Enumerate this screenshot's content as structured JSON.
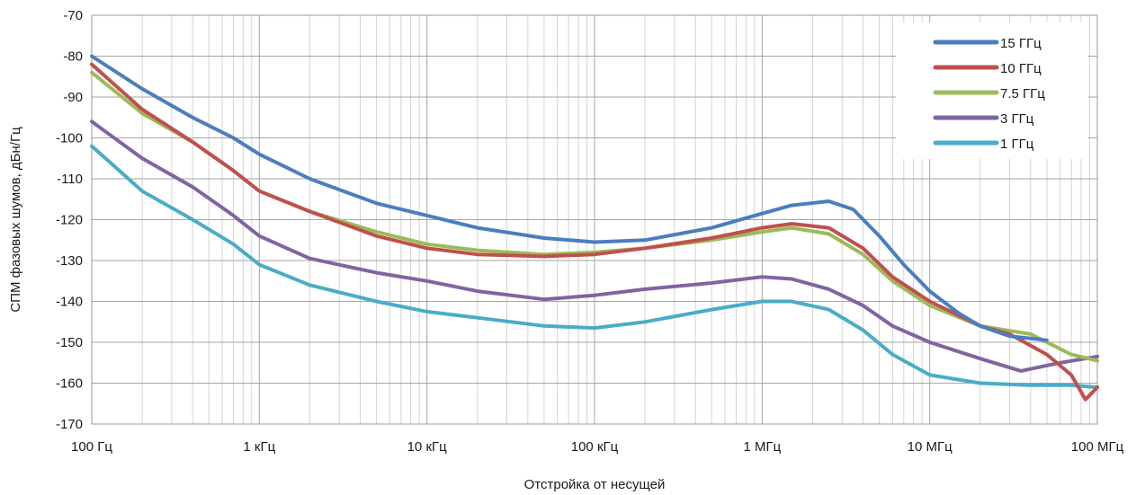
{
  "chart_data": {
    "type": "line",
    "title": "",
    "xlabel": "Отстройка от несущей",
    "ylabel": "СПМ фазовых шумов, дБн/Гц",
    "x_scale": "log",
    "xlim": [
      100,
      100000000
    ],
    "ylim": [
      -170,
      -70
    ],
    "x_ticks": [
      {
        "value": 100,
        "label": "100 Гц"
      },
      {
        "value": 1000,
        "label": "1 кГц"
      },
      {
        "value": 10000,
        "label": "10 кГц"
      },
      {
        "value": 100000,
        "label": "100 кГц"
      },
      {
        "value": 1000000,
        "label": "1 МГц"
      },
      {
        "value": 10000000,
        "label": "10 МГц"
      },
      {
        "value": 100000000,
        "label": "100 МГц"
      }
    ],
    "y_ticks": [
      -70,
      -80,
      -90,
      -100,
      -110,
      -120,
      -130,
      -140,
      -150,
      -160,
      -170
    ],
    "grid": true,
    "legend_position": "top-right",
    "series": [
      {
        "name": "15 ГГц",
        "color": "#4a7ebf",
        "x": [
          100,
          200,
          400,
          700,
          1000,
          2000,
          5000,
          10000,
          20000,
          50000,
          100000,
          200000,
          500000,
          1000000,
          1500000,
          2500000,
          3500000,
          5000000,
          7000000,
          10000000,
          15000000,
          20000000,
          30000000,
          50000000
        ],
        "y": [
          -80,
          -88,
          -95,
          -100,
          -104,
          -110,
          -116,
          -119,
          -122,
          -124.5,
          -125.5,
          -125,
          -122,
          -118.5,
          -116.5,
          -115.5,
          -117.5,
          -124,
          -131,
          -137.5,
          -143,
          -146,
          -148.5,
          -149.5
        ]
      },
      {
        "name": "10 ГГц",
        "color": "#c0504d",
        "x": [
          100,
          200,
          400,
          700,
          1000,
          2000,
          5000,
          10000,
          20000,
          50000,
          100000,
          200000,
          500000,
          1000000,
          1500000,
          2500000,
          4000000,
          6000000,
          10000000,
          20000000,
          30000000,
          50000000,
          70000000,
          85000000,
          100000000
        ],
        "y": [
          -82,
          -93,
          -101,
          -108,
          -113,
          -118,
          -124,
          -127,
          -128.5,
          -129,
          -128.5,
          -127,
          -124.5,
          -122,
          -121,
          -122,
          -127,
          -134,
          -140,
          -146,
          -148,
          -153,
          -158,
          -164,
          -161
        ]
      },
      {
        "name": "7.5 ГГц",
        "color": "#9bbb59",
        "x": [
          100,
          200,
          400,
          700,
          1000,
          2000,
          5000,
          10000,
          20000,
          50000,
          100000,
          200000,
          500000,
          1000000,
          1500000,
          2500000,
          4000000,
          6000000,
          10000000,
          20000000,
          40000000,
          70000000,
          100000000
        ],
        "y": [
          -84,
          -94,
          -101,
          -108,
          -113,
          -118,
          -123,
          -126,
          -127.5,
          -128.5,
          -128,
          -127,
          -125,
          -123,
          -122,
          -123.5,
          -128.5,
          -135,
          -141,
          -146,
          -148,
          -153,
          -154.5
        ]
      },
      {
        "name": "3 ГГц",
        "color": "#8064a2",
        "x": [
          100,
          200,
          400,
          700,
          1000,
          2000,
          5000,
          10000,
          20000,
          50000,
          100000,
          200000,
          500000,
          1000000,
          1500000,
          2500000,
          4000000,
          6000000,
          10000000,
          20000000,
          35000000,
          60000000,
          100000000
        ],
        "y": [
          -96,
          -105,
          -112,
          -119,
          -124,
          -129.5,
          -133,
          -135,
          -137.5,
          -139.5,
          -138.5,
          -137,
          -135.5,
          -134,
          -134.5,
          -137,
          -141,
          -146,
          -150,
          -154,
          -157,
          -155,
          -153.5
        ]
      },
      {
        "name": "1 ГГц",
        "color": "#4bacc6",
        "x": [
          100,
          200,
          400,
          700,
          1000,
          2000,
          5000,
          10000,
          20000,
          50000,
          100000,
          200000,
          500000,
          1000000,
          1500000,
          2500000,
          4000000,
          6000000,
          10000000,
          20000000,
          40000000,
          70000000,
          100000000
        ],
        "y": [
          -102,
          -113,
          -120,
          -126,
          -131,
          -136,
          -140,
          -142.5,
          -144,
          -146,
          -146.5,
          -145,
          -142,
          -140,
          -140,
          -142,
          -147,
          -153,
          -158,
          -160,
          -160.5,
          -160.5,
          -161
        ]
      }
    ]
  }
}
